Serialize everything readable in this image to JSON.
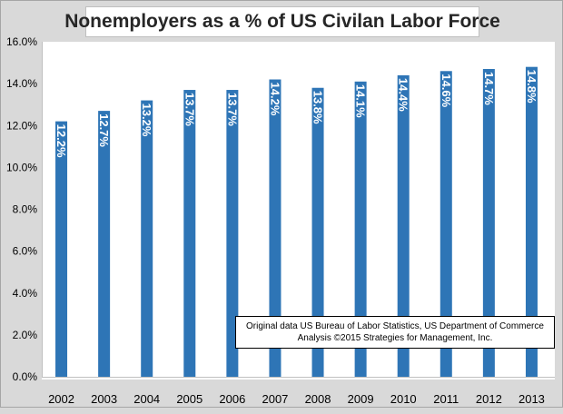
{
  "chart_data": {
    "type": "bar",
    "title": "Nonemployers as a % of US Civilan Labor Force",
    "categories": [
      "2002",
      "2003",
      "2004",
      "2005",
      "2006",
      "2007",
      "2008",
      "2009",
      "2010",
      "2011",
      "2012",
      "2013"
    ],
    "values": [
      12.2,
      12.7,
      13.2,
      13.7,
      13.7,
      14.2,
      13.8,
      14.1,
      14.4,
      14.6,
      14.7,
      14.8
    ],
    "data_labels": [
      "12.2%",
      "12.7%",
      "13.2%",
      "13.7%",
      "13.7%",
      "14.2%",
      "13.8%",
      "14.1%",
      "14.4%",
      "14.6%",
      "14.7%",
      "14.8%"
    ],
    "ylim": [
      0,
      16
    ],
    "yticks": [
      0,
      2,
      4,
      6,
      8,
      10,
      12,
      14,
      16
    ],
    "ytick_labels": [
      "0.0%",
      "2.0%",
      "4.0%",
      "6.0%",
      "8.0%",
      "10.0%",
      "12.0%",
      "14.0%",
      "16.0%"
    ],
    "xlabel": "",
    "ylabel": "",
    "grid": false,
    "bar_color": "#2e75b6",
    "data_label_orientation": "vertical"
  },
  "source_note": {
    "line1": "Original data US Bureau of Labor Statistics, US Department of Commerce",
    "line2": "Analysis ©2015 Strategies for Management, Inc."
  }
}
